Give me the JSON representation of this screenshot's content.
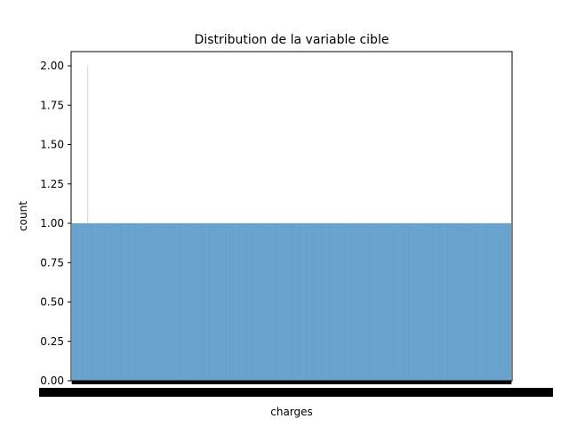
{
  "chart_data": {
    "type": "bar",
    "title": "Distribution de la variable cible",
    "xlabel": "charges",
    "ylabel": "count",
    "ylim": [
      0,
      2.0975
    ],
    "yticks": [
      "0.00",
      "0.25",
      "0.50",
      "0.75",
      "1.00",
      "1.25",
      "1.50",
      "1.75",
      "2.00"
    ],
    "ytick_values": [
      0,
      0.25,
      0.5,
      0.75,
      1.0,
      1.25,
      1.5,
      1.75,
      2.0
    ],
    "grid": false,
    "legend": "none",
    "bar_color": "#1f77b4",
    "n_categories": 1337,
    "duplicate_category_index": 48,
    "value_default": 1,
    "value_duplicate": 2,
    "xtick_labels_note": "overlapping unreadable category labels"
  }
}
